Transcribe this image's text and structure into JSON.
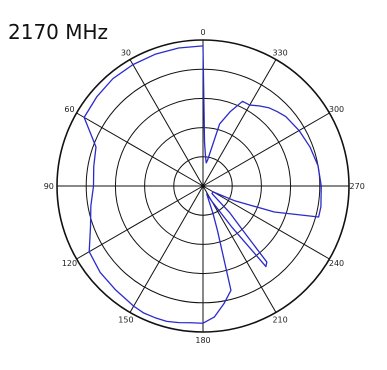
{
  "chart_data": {
    "type": "polar-line",
    "title": "2170 MHz",
    "angle_zero": "top",
    "angle_direction": "counterclockwise",
    "angular_tick_labels": [
      "0",
      "30",
      "60",
      "90",
      "120",
      "150",
      "180",
      "210",
      "240",
      "270",
      "300",
      "330"
    ],
    "angular_tick_values": [
      0,
      30,
      60,
      90,
      120,
      150,
      180,
      210,
      240,
      270,
      300,
      330
    ],
    "radial_range": [
      0,
      5
    ],
    "radial_rings": [
      1,
      2,
      3,
      4,
      5
    ],
    "radial_tick_labels_visible": false,
    "grid": true,
    "series": [
      {
        "color": "#2b2bcc",
        "angles": [
          0,
          10,
          20,
          30,
          40,
          50,
          60,
          70,
          80,
          90,
          100,
          110,
          120,
          130,
          140,
          150,
          155,
          160,
          165,
          170,
          175,
          180,
          185,
          190,
          195,
          198,
          200,
          205,
          210,
          215,
          218,
          220,
          222,
          225,
          230,
          240,
          245,
          250,
          255,
          260,
          270,
          280,
          290,
          300,
          310,
          315,
          320,
          325,
          330,
          335,
          340,
          345,
          350,
          352,
          355,
          358,
          360
        ],
        "values": [
          4.8,
          4.8,
          4.8,
          4.8,
          4.8,
          4.75,
          4.7,
          3.9,
          3.8,
          3.75,
          3.9,
          4.1,
          4.5,
          4.6,
          4.65,
          4.75,
          4.8,
          4.8,
          4.8,
          4.75,
          4.7,
          4.7,
          4.5,
          4.1,
          3.7,
          1.6,
          1.0,
          0.3,
          0.6,
          1.7,
          3.5,
          3.4,
          2.0,
          1.3,
          0.4,
          0.4,
          1.2,
          2.6,
          4.1,
          4.1,
          4.05,
          4.0,
          3.9,
          3.8,
          3.7,
          3.6,
          3.5,
          3.35,
          3.2,
          3.2,
          2.7,
          2.2,
          0.9,
          0.8,
          1.0,
          1.5,
          4.8
        ]
      }
    ]
  }
}
